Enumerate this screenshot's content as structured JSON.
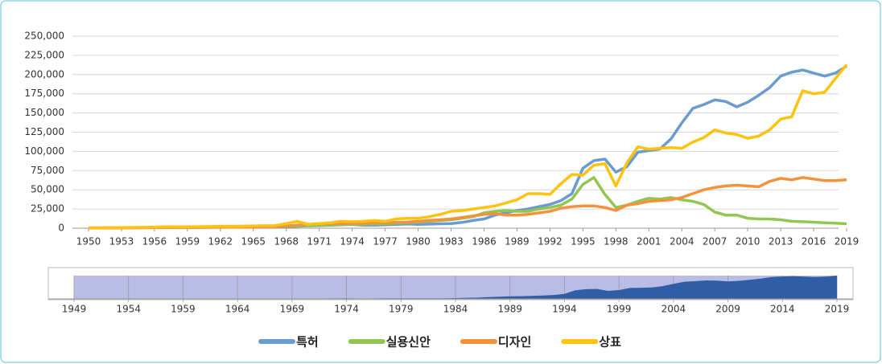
{
  "chart_data": {
    "type": "line",
    "x": [
      1950,
      1951,
      1952,
      1953,
      1954,
      1955,
      1956,
      1957,
      1958,
      1959,
      1960,
      1961,
      1962,
      1963,
      1964,
      1965,
      1966,
      1967,
      1968,
      1969,
      1970,
      1971,
      1972,
      1973,
      1974,
      1975,
      1976,
      1977,
      1978,
      1979,
      1980,
      1981,
      1982,
      1983,
      1984,
      1985,
      1986,
      1987,
      1988,
      1989,
      1990,
      1991,
      1992,
      1993,
      1994,
      1995,
      1996,
      1997,
      1998,
      1999,
      2000,
      2001,
      2002,
      2003,
      2004,
      2005,
      2006,
      2007,
      2008,
      2009,
      2010,
      2011,
      2012,
      2013,
      2014,
      2015,
      2016,
      2017,
      2018,
      2019
    ],
    "xlim": [
      1950,
      2019
    ],
    "xticks": [
      1950,
      1953,
      1956,
      1959,
      1962,
      1965,
      1968,
      1971,
      1974,
      1977,
      1980,
      1983,
      1986,
      1989,
      1992,
      1995,
      1998,
      2001,
      2004,
      2007,
      2010,
      2013,
      2016,
      2019
    ],
    "ylim": [
      0,
      250000
    ],
    "yticks": [
      0,
      {
        "value": 25000,
        "label": "25,000"
      },
      {
        "value": 50000,
        "label": "50,000"
      },
      {
        "value": 75000,
        "label": "75,000"
      },
      {
        "value": 100000,
        "label": "100,000"
      },
      {
        "value": 125000,
        "label": "125,000"
      },
      {
        "value": 150000,
        "label": "150,000"
      },
      {
        "value": 175000,
        "label": "175,000"
      },
      {
        "value": 200000,
        "label": "200,000"
      },
      {
        "value": 225000,
        "label": "225,000"
      },
      {
        "value": 250000,
        "label": "250,000"
      }
    ],
    "grid": true,
    "legend": "bottom",
    "series": [
      {
        "name": "특허",
        "color": "#6a9bd1",
        "values": [
          200,
          300,
          400,
          500,
          600,
          700,
          800,
          900,
          1000,
          1000,
          1100,
          1200,
          1300,
          1300,
          1400,
          1500,
          1600,
          1800,
          2000,
          2500,
          3000,
          3500,
          4000,
          4500,
          5000,
          4000,
          4000,
          4500,
          5000,
          5500,
          5000,
          5300,
          5800,
          6000,
          7500,
          10000,
          12000,
          17000,
          20000,
          23000,
          25000,
          28000,
          31000,
          36000,
          45000,
          78000,
          88000,
          90000,
          73000,
          80000,
          99000,
          101000,
          103000,
          116000,
          137000,
          156000,
          161000,
          167000,
          165000,
          158000,
          164000,
          173000,
          183000,
          198000,
          203000,
          206000,
          202000,
          198000,
          202000,
          211000
        ]
      },
      {
        "name": "실용신안",
        "color": "#92c653",
        "values": [
          300,
          400,
          500,
          600,
          700,
          800,
          900,
          1000,
          1000,
          1100,
          1200,
          1300,
          1400,
          1500,
          1600,
          1800,
          2000,
          2200,
          2500,
          3000,
          3500,
          4000,
          4500,
          5000,
          5500,
          5000,
          5500,
          6000,
          6500,
          7000,
          8000,
          9000,
          10000,
          11000,
          13000,
          15000,
          20000,
          22000,
          23000,
          22000,
          22000,
          25000,
          27000,
          30000,
          38000,
          57000,
          66000,
          44000,
          27000,
          30000,
          35000,
          39000,
          38000,
          40000,
          37000,
          35000,
          31000,
          21000,
          17000,
          17000,
          13000,
          12000,
          12000,
          11000,
          9000,
          8500,
          7800,
          7000,
          6500,
          5800
        ]
      },
      {
        "name": "디자인",
        "color": "#f4923b",
        "values": [
          300,
          300,
          400,
          400,
          500,
          600,
          700,
          800,
          900,
          1000,
          1000,
          1100,
          1200,
          1300,
          1400,
          1500,
          1700,
          2000,
          3000,
          4000,
          5000,
          5500,
          6000,
          6000,
          6500,
          6500,
          7000,
          7000,
          7500,
          8000,
          9000,
          10000,
          11000,
          12000,
          14000,
          16000,
          18000,
          19000,
          17000,
          17000,
          18000,
          20000,
          22000,
          26000,
          28000,
          29000,
          29000,
          27000,
          23000,
          30000,
          32000,
          35000,
          36000,
          37000,
          40000,
          45000,
          50000,
          53000,
          55000,
          56000,
          55000,
          54000,
          61000,
          65000,
          63000,
          66000,
          64000,
          62000,
          62000,
          63000
        ]
      },
      {
        "name": "상표",
        "color": "#ffc20e",
        "values": [
          500,
          600,
          700,
          800,
          1000,
          1200,
          1500,
          1800,
          1800,
          1900,
          2000,
          2200,
          2500,
          2500,
          2600,
          3000,
          3200,
          3500,
          6000,
          9000,
          5000,
          6000,
          7000,
          9000,
          8500,
          9000,
          10000,
          9000,
          12000,
          13000,
          13000,
          15000,
          18000,
          22000,
          23000,
          25000,
          27000,
          29000,
          33000,
          37000,
          45000,
          45000,
          44000,
          58000,
          70000,
          69000,
          82000,
          84000,
          55000,
          85000,
          106000,
          103000,
          104000,
          105000,
          104000,
          112000,
          118000,
          128000,
          124000,
          122000,
          117000,
          120000,
          128000,
          142000,
          145000,
          179000,
          175000,
          177000,
          195000,
          213000
        ]
      }
    ],
    "navigator": {
      "xlim": [
        1949,
        2019
      ],
      "xticks": [
        1949,
        1954,
        1959,
        1964,
        1969,
        1974,
        1979,
        1984,
        1989,
        1994,
        1999,
        2004,
        2009,
        2014,
        2019
      ]
    }
  }
}
